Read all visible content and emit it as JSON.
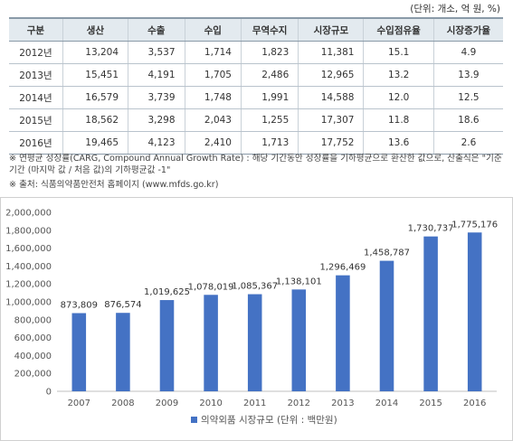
{
  "unit_note": "(단위: 개소, 억 원, %)",
  "table": {
    "headers": [
      "구분",
      "생산",
      "수출",
      "수입",
      "무역수지",
      "시장규모",
      "수입점유율",
      "시장증가율"
    ],
    "rows": [
      [
        "2012년",
        "13,204",
        "3,537",
        "1,714",
        "1,823",
        "11,381",
        "15.1",
        "4.9"
      ],
      [
        "2013년",
        "15,451",
        "4,191",
        "1,705",
        "2,486",
        "12,965",
        "13.2",
        "13.9"
      ],
      [
        "2014년",
        "16,579",
        "3,739",
        "1,748",
        "1,991",
        "14,588",
        "12.0",
        "12.5"
      ],
      [
        "2015년",
        "18,562",
        "3,298",
        "2,043",
        "1,255",
        "17,307",
        "11.8",
        "18.6"
      ],
      [
        "2016년",
        "19,465",
        "4,123",
        "2,410",
        "1,713",
        "17,752",
        "13.6",
        "2.6"
      ]
    ]
  },
  "notes": {
    "cagr_line1": "※ 연평균 성장률(CARG, Compound Annual Growth Rate) : 해당 기간동안 성장률을 기하평균으로 환산한 값으로, 산출식은 \"기준",
    "cagr_line2": "기간 (마지막 값 / 처음 값)의 기하평균값 -1\"",
    "source": "※ 출처: 식품의약품안전처 홈페이지 (www.mfds.go.kr)"
  },
  "colors": {
    "bar": "#4472c4"
  },
  "chart_data": {
    "type": "bar",
    "categories": [
      "2007",
      "2008",
      "2009",
      "2010",
      "2011",
      "2012",
      "2013",
      "2014",
      "2015",
      "2016"
    ],
    "series": [
      {
        "name": "의약외품 시장규모 (단위 : 백만원)",
        "values": [
          873809,
          876574,
          1019625,
          1078019,
          1085367,
          1138101,
          1296469,
          1458787,
          1730737,
          1775176
        ]
      }
    ],
    "data_labels": [
      "873,809",
      "876,574",
      "1,019,625",
      "1,078,019",
      "1,085,367",
      "1,138,101",
      "1,296,469",
      "1,458,787",
      "1,730,737",
      "1,775,176"
    ],
    "yticks": [
      "0",
      "200,000",
      "400,000",
      "600,000",
      "800,000",
      "1,000,000",
      "1,200,000",
      "1,400,000",
      "1,600,000",
      "1,800,000",
      "2,000,000"
    ],
    "ylim": [
      0,
      2000000
    ],
    "grid": false,
    "legend_position": "bottom"
  }
}
